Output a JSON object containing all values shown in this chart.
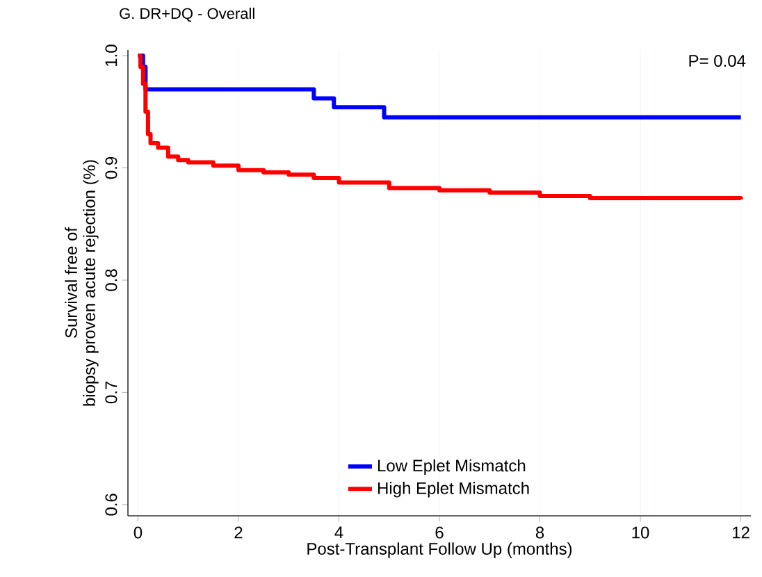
{
  "chart_data": {
    "type": "step",
    "title": "G. DR+DQ - Overall",
    "xlabel": "Post-Transplant Follow Up (months)",
    "ylabel": "Survival free of\nbiopsy proven acute rejection (%)",
    "annotations": [
      "P= 0.04"
    ],
    "xlim": [
      -0.2,
      12.2
    ],
    "ylim": [
      0.59,
      1.005
    ],
    "xticks": [
      0,
      2,
      4,
      6,
      8,
      10,
      12
    ],
    "yticks": [
      0.6,
      0.7,
      0.8,
      0.9,
      {
        "value": 1,
        "label": "1.0"
      }
    ],
    "grid": "x",
    "legend": "bottom",
    "series": [
      {
        "name": "Low Eplet Mismatch",
        "color": "#0000ff",
        "x": [
          0,
          0.1,
          0.15,
          3.5,
          3.9,
          4.9,
          12
        ],
        "values": [
          1.0,
          0.99,
          0.97,
          0.962,
          0.954,
          0.945,
          0.945
        ]
      },
      {
        "name": "High Eplet Mismatch",
        "color": "#ff0000",
        "x": [
          0,
          0.05,
          0.1,
          0.15,
          0.2,
          0.25,
          0.4,
          0.6,
          0.8,
          1,
          1.5,
          2,
          2.5,
          3,
          3.5,
          4,
          5,
          6,
          7,
          8,
          9,
          12
        ],
        "values": [
          1.0,
          0.99,
          0.975,
          0.95,
          0.93,
          0.922,
          0.918,
          0.91,
          0.907,
          0.905,
          0.902,
          0.898,
          0.896,
          0.894,
          0.891,
          0.887,
          0.882,
          0.88,
          0.878,
          0.875,
          0.873,
          0.872
        ]
      }
    ]
  }
}
